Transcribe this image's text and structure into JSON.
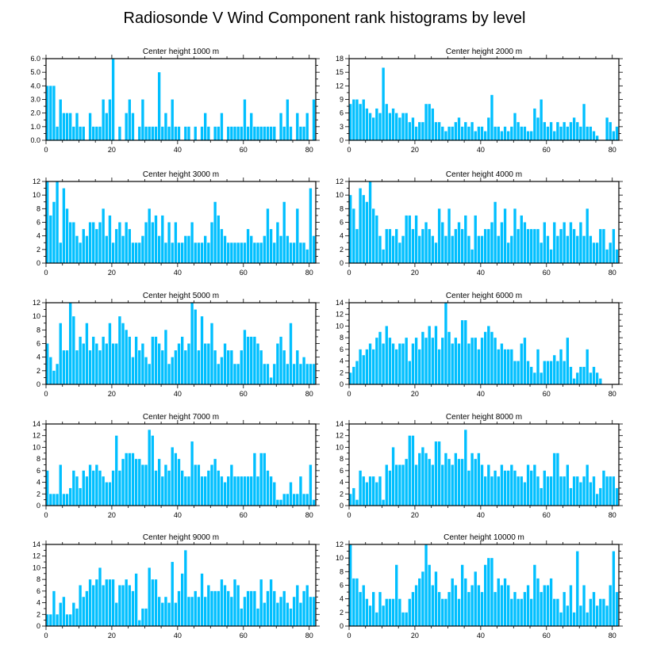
{
  "title": "Radiosonde V Wind Component rank histograms by level",
  "bar_color": "#00bfff",
  "chart_data": [
    {
      "type": "bar",
      "title": "Center height 1000 m",
      "xlim": [
        0,
        82
      ],
      "ylim": [
        0,
        6
      ],
      "xticks": [
        "0",
        "20",
        "40",
        "60",
        "80"
      ],
      "yticks": [
        "0.0",
        "1.0",
        "2.0",
        "3.0",
        "4.0",
        "5.0",
        "6.0"
      ],
      "values": [
        4,
        4,
        4,
        1,
        3,
        2,
        2,
        2,
        1,
        2,
        1,
        1,
        0,
        2,
        1,
        1,
        1,
        3,
        2,
        3,
        6,
        0,
        1,
        0,
        2,
        3,
        2,
        0,
        1,
        3,
        1,
        1,
        1,
        1,
        5,
        1,
        2,
        1,
        3,
        1,
        1,
        0,
        1,
        1,
        0,
        1,
        0,
        1,
        2,
        1,
        0,
        1,
        1,
        2,
        0,
        1,
        1,
        1,
        1,
        1,
        3,
        1,
        2,
        1,
        1,
        1,
        1,
        1,
        1,
        1,
        0,
        2,
        1,
        3,
        1,
        0,
        2,
        1,
        1,
        2,
        0,
        3
      ]
    },
    {
      "type": "bar",
      "title": "Center height 2000 m",
      "xlim": [
        0,
        82
      ],
      "ylim": [
        0,
        18
      ],
      "xticks": [
        "0",
        "20",
        "40",
        "60",
        "80"
      ],
      "yticks": [
        "0",
        "3",
        "6",
        "9",
        "12",
        "15",
        "18"
      ],
      "values": [
        8,
        9,
        9,
        8,
        9,
        7,
        6,
        5,
        7,
        6,
        16,
        8,
        6,
        7,
        6,
        5,
        6,
        6,
        4,
        5,
        3,
        4,
        4,
        8,
        8,
        7,
        4,
        4,
        3,
        2,
        3,
        3,
        4,
        5,
        3,
        4,
        3,
        4,
        2,
        3,
        3,
        2,
        5,
        10,
        3,
        3,
        2,
        3,
        2,
        3,
        6,
        4,
        3,
        3,
        2,
        2,
        7,
        5,
        9,
        4,
        3,
        4,
        2,
        4,
        3,
        4,
        3,
        4,
        5,
        4,
        3,
        8,
        3,
        3,
        2,
        1,
        0,
        0,
        5,
        4,
        2,
        3,
        4,
        5,
        3,
        5,
        4,
        5,
        10
      ]
    },
    {
      "type": "bar",
      "title": "Center height 3000 m",
      "xlim": [
        0,
        82
      ],
      "ylim": [
        0,
        12
      ],
      "xticks": [
        "0",
        "20",
        "40",
        "60",
        "80"
      ],
      "yticks": [
        "0",
        "2",
        "4",
        "6",
        "8",
        "10",
        "12"
      ],
      "values": [
        12,
        7,
        9,
        12,
        3,
        11,
        8,
        6,
        6,
        4,
        3,
        5,
        4,
        6,
        6,
        5,
        6,
        8,
        4,
        7,
        3,
        5,
        6,
        4,
        6,
        5,
        3,
        3,
        3,
        4,
        6,
        8,
        6,
        7,
        4,
        7,
        3,
        6,
        3,
        6,
        3,
        3,
        4,
        4,
        6,
        3,
        3,
        3,
        4,
        3,
        6,
        9,
        7,
        5,
        4,
        3,
        3,
        3,
        3,
        3,
        3,
        5,
        4,
        3,
        3,
        3,
        4,
        8,
        5,
        3,
        6,
        4,
        9,
        4,
        3,
        3,
        8,
        3,
        3,
        2,
        11,
        4,
        3,
        1,
        7
      ]
    },
    {
      "type": "bar",
      "title": "Center height 4000 m",
      "xlim": [
        0,
        82
      ],
      "ylim": [
        0,
        12
      ],
      "xticks": [
        "0",
        "20",
        "40",
        "60",
        "80"
      ],
      "yticks": [
        "0",
        "2",
        "4",
        "6",
        "8",
        "10",
        "12"
      ],
      "values": [
        10,
        8,
        5,
        11,
        10,
        9,
        12,
        8,
        7,
        4,
        2,
        5,
        5,
        4,
        5,
        3,
        4,
        7,
        7,
        5,
        7,
        4,
        5,
        6,
        5,
        4,
        3,
        8,
        6,
        4,
        8,
        4,
        5,
        6,
        5,
        7,
        4,
        2,
        7,
        4,
        4,
        5,
        5,
        6,
        9,
        4,
        6,
        8,
        3,
        4,
        8,
        5,
        7,
        6,
        5,
        5,
        5,
        5,
        3,
        6,
        4,
        2,
        6,
        4,
        5,
        6,
        4,
        6,
        5,
        4,
        6,
        4,
        8,
        4,
        3,
        3,
        5,
        5,
        2,
        3,
        5,
        2,
        2,
        8,
        9,
        7,
        2,
        6,
        3,
        10,
        9
      ]
    },
    {
      "type": "bar",
      "title": "Center height 5000 m",
      "xlim": [
        0,
        82
      ],
      "ylim": [
        0,
        12
      ],
      "xticks": [
        "0",
        "20",
        "40",
        "60",
        "80"
      ],
      "yticks": [
        "0",
        "2",
        "4",
        "6",
        "8",
        "10",
        "12"
      ],
      "values": [
        6,
        4,
        2,
        3,
        9,
        5,
        5,
        12,
        10,
        5,
        7,
        6,
        9,
        5,
        7,
        6,
        5,
        7,
        6,
        9,
        6,
        6,
        10,
        9,
        8,
        7,
        4,
        7,
        5,
        6,
        4,
        3,
        7,
        7,
        6,
        5,
        8,
        3,
        4,
        5,
        6,
        7,
        5,
        6,
        12,
        11,
        5,
        10,
        6,
        6,
        9,
        5,
        3,
        4,
        6,
        5,
        5,
        3,
        3,
        5,
        8,
        7,
        7,
        7,
        6,
        5,
        3,
        3,
        1,
        3,
        6,
        7,
        5,
        3,
        9,
        3,
        5,
        3,
        4,
        3,
        3,
        3,
        6
      ]
    },
    {
      "type": "bar",
      "title": "Center height 6000 m",
      "xlim": [
        0,
        82
      ],
      "ylim": [
        0,
        14
      ],
      "xticks": [
        "0",
        "20",
        "40",
        "60",
        "80"
      ],
      "yticks": [
        "0",
        "2",
        "4",
        "6",
        "8",
        "10",
        "12",
        "14"
      ],
      "values": [
        2,
        3,
        4,
        6,
        5,
        6,
        7,
        6,
        8,
        9,
        7,
        10,
        8,
        7,
        6,
        7,
        7,
        8,
        4,
        7,
        8,
        6,
        9,
        8,
        10,
        8,
        10,
        6,
        8,
        14,
        9,
        7,
        8,
        7,
        11,
        11,
        7,
        8,
        8,
        6,
        8,
        9,
        10,
        9,
        8,
        6,
        7,
        6,
        6,
        6,
        4,
        4,
        7,
        8,
        4,
        3,
        2,
        6,
        2,
        4,
        4,
        4,
        5,
        4,
        6,
        4,
        8,
        3,
        1,
        2,
        3,
        3,
        6,
        2,
        3,
        2,
        1
      ]
    },
    {
      "type": "bar",
      "title": "Center height 7000 m",
      "xlim": [
        0,
        82
      ],
      "ylim": [
        0,
        14
      ],
      "xticks": [
        "0",
        "20",
        "40",
        "60",
        "80"
      ],
      "yticks": [
        "0",
        "2",
        "4",
        "6",
        "8",
        "10",
        "12",
        "14"
      ],
      "values": [
        6,
        2,
        2,
        2,
        7,
        2,
        2,
        3,
        6,
        5,
        3,
        6,
        5,
        7,
        6,
        7,
        6,
        5,
        4,
        4,
        6,
        12,
        6,
        8,
        9,
        9,
        9,
        8,
        8,
        7,
        7,
        13,
        12,
        6,
        8,
        5,
        7,
        6,
        10,
        9,
        8,
        6,
        5,
        5,
        11,
        7,
        7,
        5,
        5,
        6,
        7,
        8,
        6,
        5,
        4,
        5,
        7,
        5,
        5,
        5,
        5,
        5,
        5,
        9,
        5,
        9,
        9,
        6,
        5,
        4,
        1,
        1,
        2,
        2,
        4,
        2,
        2,
        5,
        2,
        2,
        7,
        1,
        2,
        5
      ]
    },
    {
      "type": "bar",
      "title": "Center height 8000 m",
      "xlim": [
        0,
        82
      ],
      "ylim": [
        0,
        14
      ],
      "xticks": [
        "0",
        "20",
        "40",
        "60",
        "80"
      ],
      "yticks": [
        "0",
        "2",
        "4",
        "6",
        "8",
        "10",
        "12",
        "14"
      ],
      "values": [
        2,
        3,
        1,
        6,
        5,
        4,
        5,
        5,
        4,
        5,
        1,
        7,
        6,
        10,
        7,
        7,
        7,
        8,
        12,
        12,
        7,
        9,
        10,
        9,
        8,
        7,
        11,
        11,
        7,
        9,
        8,
        7,
        9,
        8,
        8,
        13,
        6,
        9,
        8,
        9,
        7,
        5,
        7,
        5,
        6,
        5,
        7,
        6,
        6,
        7,
        6,
        5,
        5,
        4,
        7,
        6,
        7,
        5,
        3,
        6,
        5,
        5,
        9,
        9,
        5,
        5,
        7,
        3,
        5,
        5,
        4,
        5,
        7,
        4,
        5,
        2,
        3,
        6,
        5,
        5,
        5,
        3,
        2,
        3,
        1
      ]
    },
    {
      "type": "bar",
      "title": "Center height 9000 m",
      "xlim": [
        0,
        82
      ],
      "ylim": [
        0,
        14
      ],
      "xticks": [
        "0",
        "20",
        "40",
        "60",
        "80"
      ],
      "yticks": [
        "0",
        "2",
        "4",
        "6",
        "8",
        "10",
        "12",
        "14"
      ],
      "values": [
        2,
        2,
        6,
        2,
        4,
        5,
        2,
        2,
        4,
        3,
        7,
        5,
        6,
        8,
        7,
        8,
        10,
        7,
        8,
        8,
        8,
        4,
        7,
        7,
        8,
        7,
        6,
        9,
        1,
        3,
        3,
        10,
        8,
        8,
        5,
        4,
        5,
        4,
        11,
        4,
        6,
        9,
        13,
        5,
        5,
        6,
        5,
        9,
        5,
        7,
        6,
        6,
        6,
        8,
        7,
        6,
        5,
        8,
        7,
        3,
        5,
        6,
        6,
        6,
        3,
        8,
        4,
        6,
        8,
        6,
        4,
        5,
        6,
        4,
        3,
        5,
        7,
        4,
        6,
        7,
        5,
        5,
        13
      ]
    },
    {
      "type": "bar",
      "title": "Center height 10000 m",
      "xlim": [
        0,
        82
      ],
      "ylim": [
        0,
        12
      ],
      "xticks": [
        "0",
        "20",
        "40",
        "60",
        "80"
      ],
      "yticks": [
        "0",
        "2",
        "4",
        "6",
        "8",
        "10",
        "12"
      ],
      "values": [
        12,
        7,
        7,
        5,
        6,
        4,
        3,
        5,
        2,
        5,
        3,
        4,
        4,
        4,
        9,
        4,
        2,
        2,
        4,
        5,
        6,
        7,
        8,
        12,
        9,
        6,
        8,
        5,
        4,
        4,
        5,
        7,
        6,
        4,
        9,
        7,
        5,
        6,
        8,
        6,
        5,
        9,
        10,
        10,
        5,
        7,
        6,
        7,
        6,
        4,
        5,
        4,
        4,
        5,
        6,
        4,
        9,
        7,
        5,
        6,
        6,
        7,
        4,
        4,
        2,
        5,
        3,
        6,
        2,
        11,
        3,
        6,
        2,
        4,
        5,
        3,
        4,
        4,
        3,
        6,
        11,
        5
      ]
    }
  ]
}
